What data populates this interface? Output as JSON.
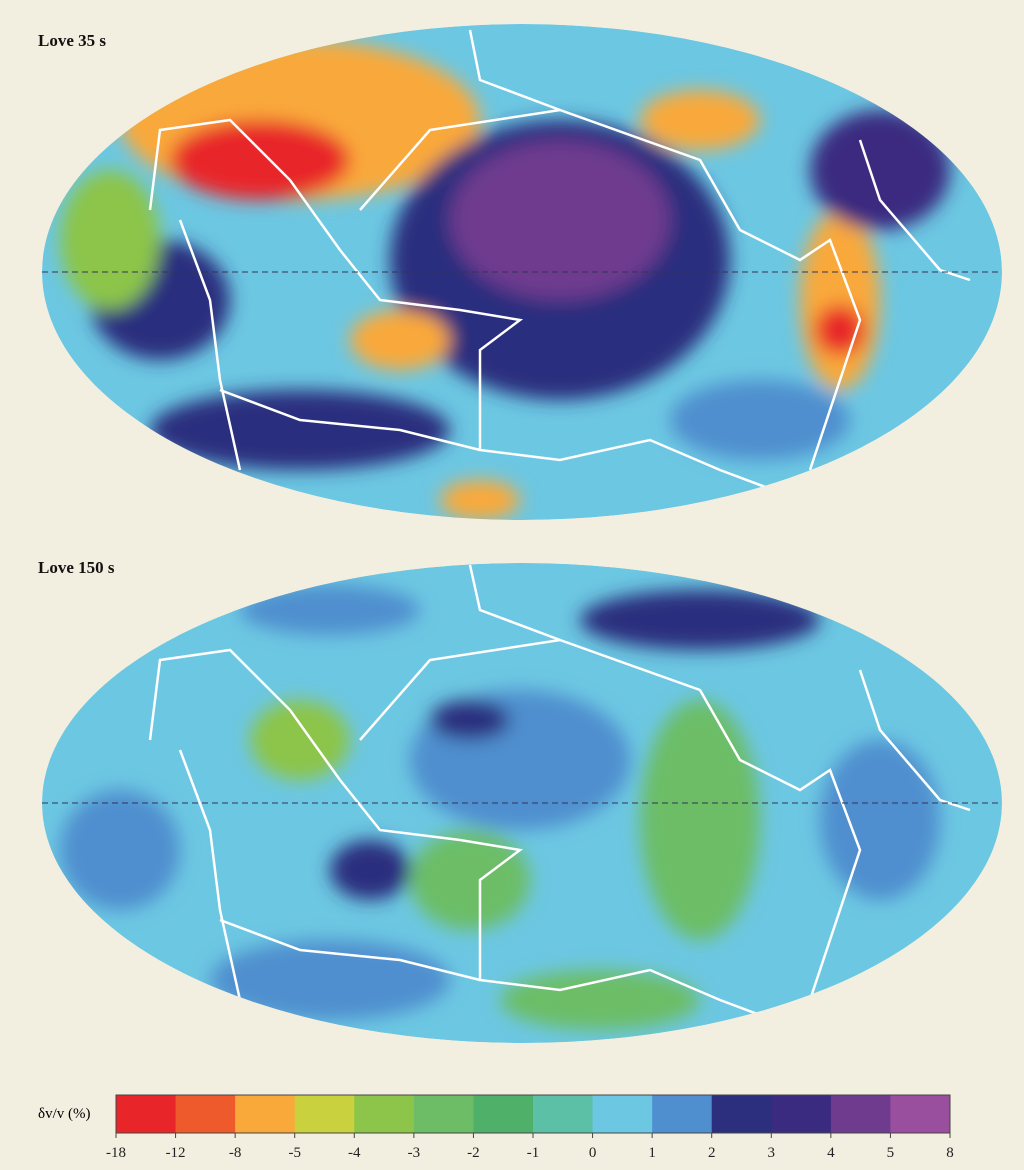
{
  "maps": [
    {
      "title": "Love 35 s"
    },
    {
      "title": "Love 150 s"
    }
  ],
  "colorbar": {
    "label": "δv/v (%)",
    "ticks": [
      -18,
      -12,
      -8,
      -5,
      -4,
      -3,
      -2,
      -1,
      0,
      1,
      2,
      3,
      4,
      5,
      8
    ],
    "colors": [
      "#e8262a",
      "#ee5a2c",
      "#f9a93a",
      "#c9d23e",
      "#8cc54a",
      "#6cbd66",
      "#4fb06a",
      "#5cc0a6",
      "#6cc7e2",
      "#4f8fcf",
      "#2c2f7e",
      "#3a2a80",
      "#6e3b8f",
      "#9a4e9e"
    ]
  }
}
